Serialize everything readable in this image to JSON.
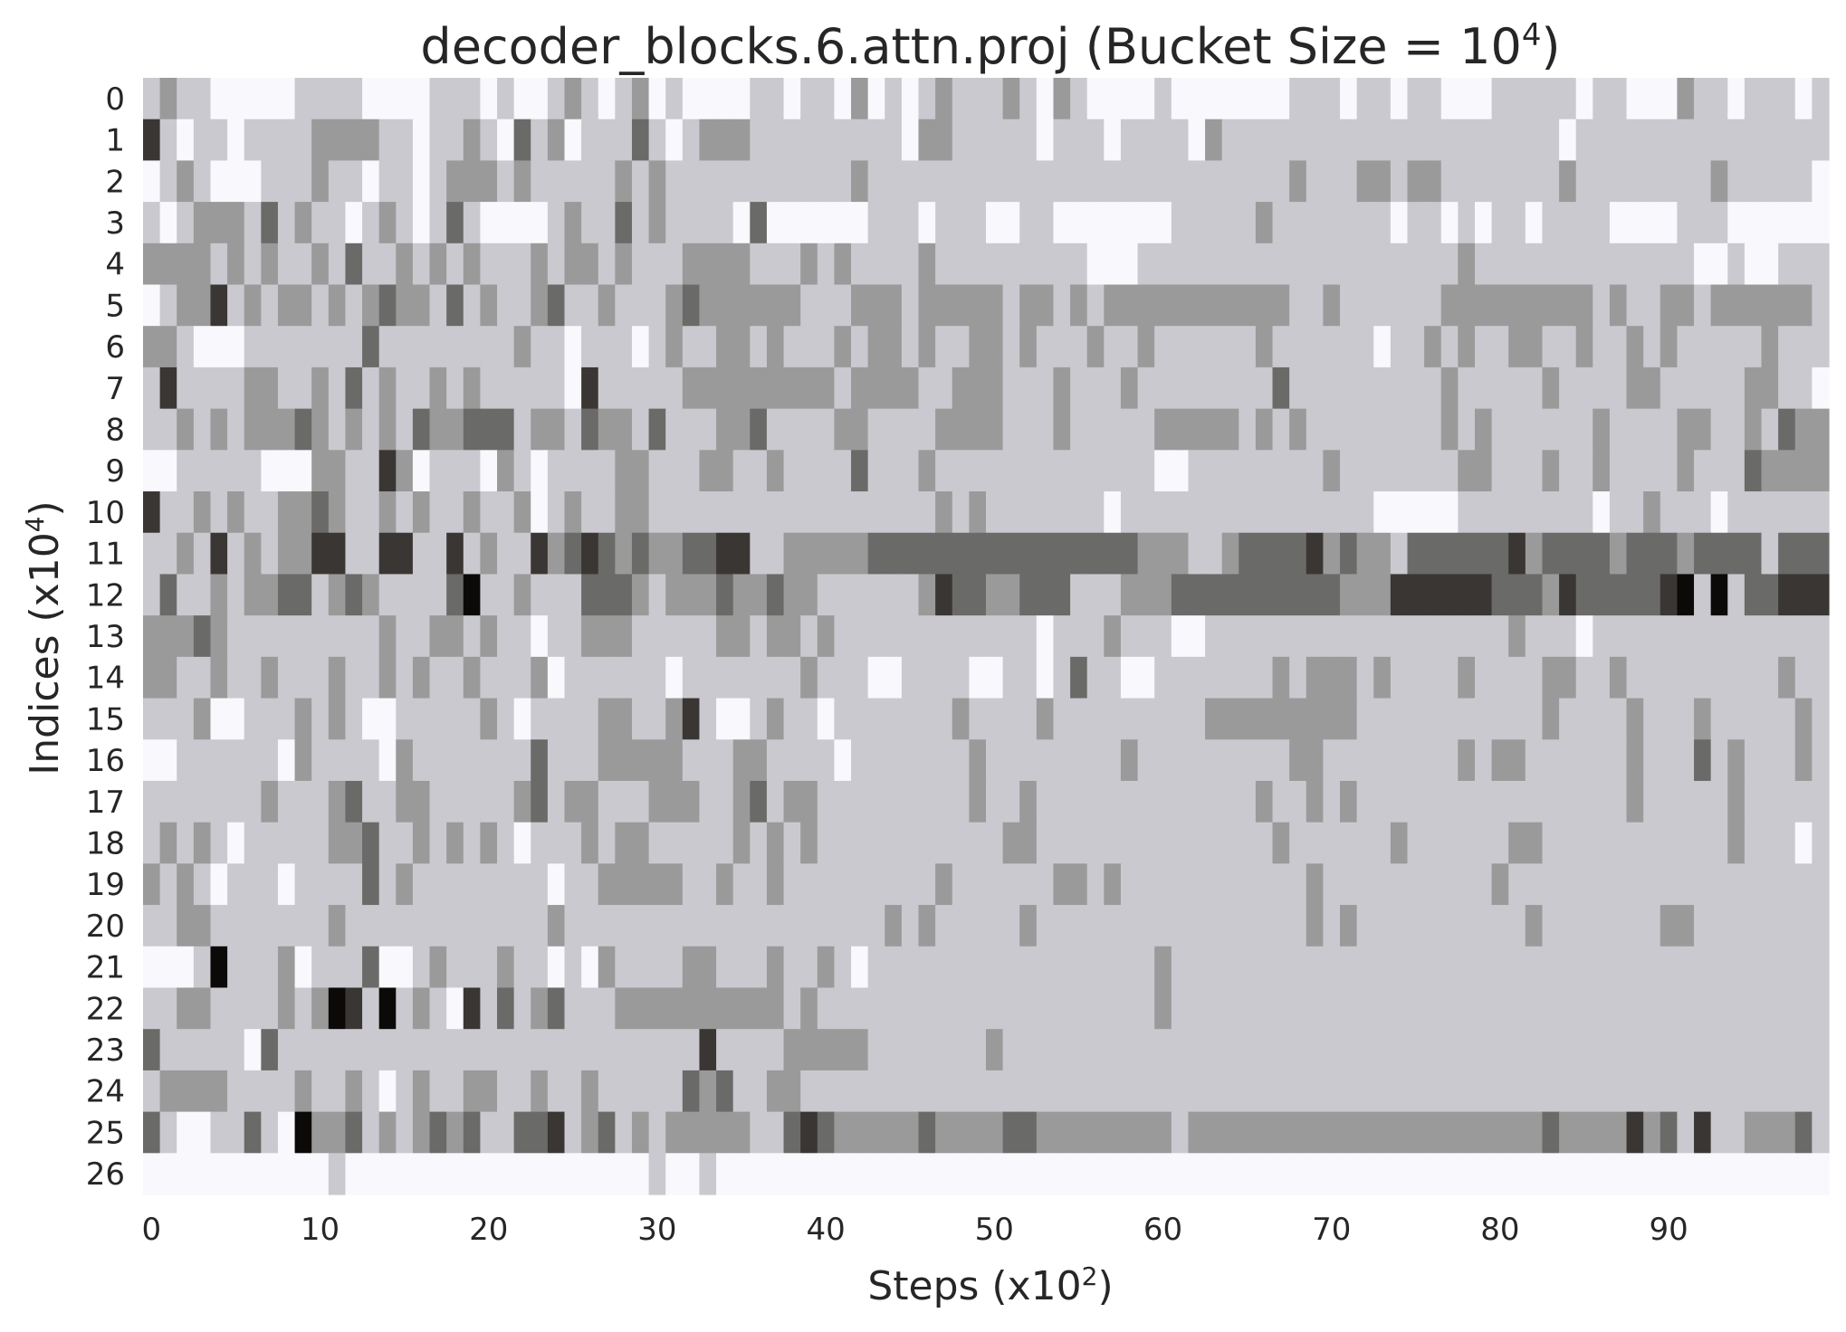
{
  "chart_data": {
    "type": "heatmap",
    "title": "decoder_blocks.6.attn.proj (Bucket Size = 10",
    "title_sup": "4",
    "title_suffix": ")",
    "xlabel": "Steps (x10",
    "xlabel_sup": "2",
    "xlabel_suffix": ")",
    "ylabel": "Indices (x10",
    "ylabel_sup": "4",
    "ylabel_suffix": ")",
    "x_ticks": [
      "0",
      "10",
      "20",
      "30",
      "40",
      "50",
      "60",
      "70",
      "80",
      "90"
    ],
    "y_ticks": [
      "0",
      "1",
      "2",
      "3",
      "4",
      "5",
      "6",
      "7",
      "8",
      "9",
      "10",
      "11",
      "12",
      "13",
      "14",
      "15",
      "16",
      "17",
      "18",
      "19",
      "20",
      "21",
      "22",
      "23",
      "24",
      "25",
      "26"
    ],
    "n_cols": 100,
    "n_rows": 27,
    "colormap": [
      "#f8f8fd",
      "#c9c9cf",
      "#9a9a9a",
      "#6a6a68",
      "#3a3634",
      "#0c0a08"
    ],
    "level_scale": "0 = lightest, 5 = darkest",
    "rows": [
      "1211000001111000011101001210120100001101102010121112102100001000000011101101100011111011000211011101",
      "4101101111222211011210312011131012221111111110221111101110111102111111111111111111110111111111111111",
      "0121000111211011012221211111212111111111112111111111111111111111111121112212211111112111111112111110",
      "1012221312110121013100001211312111103000000111011100110000000111112111111101101011011110000111000000",
      "2222121211213112121211121221211122221112121111211111111100011111111111111111112111111111111100100111",
      "0122412122121232213121123112111232222221112221222221221212222222222211211111122222222212112212222221",
      "2210001111111311111111211011101211221211121221211221211121121111112111111011212112211211212111112111",
      "1411112211213121121211111041111122222222212222112221112111211111111311111111121111121111221111122110",
      "1121212223212121322333122132213111223111122111122221112111112222212121111111121211111121111221121322",
      "0011111000221142011102101111221112211211113111211111111111110011111111211111112211121121111211132222",
      "4112121122321121211211201211221111111111111111121211111110111111111111111000001111111101121110111111",
      "1121412122441144114121142343232233441122222333333333333333322211233334232213333334233332333233331333",
      "1311212233123211113511211133321222322322111111243322333111222333333333322244444433324333334515133444",
      "2223211111111121122121101122211111221221211111111111101112111001111111111111111112111011111111111111",
      "2211211211121121211211120111111011111112111001111001101311001111111212221211112111122112111111111211",
      "1112001112121001111121011112211241001211011111112111121111111112222222221111111111121111211121111121",
      "0011111102111102111111131112222211122111101111111211111111211111111122111111112122111111211131211121",
      "1111111211123112211111231221112221123122111111111211211111111111112112121111111111111111211111211111",
      "1212101111122311212121011121221111121212111111111112211111111111111211111121111112211111111111211101",
      "2121011101111312111111110112222211211211111111121111112212111111111112111111111121111111111111111111",
      "1122111111121111111111112111111111111111111121211111211111111111111112121111111111211111112211111111",
      "0001511120111300121112110102111122111211210111111111111111112111111111111111111111111111111111111111",
      "1122111121254151210413123111222222222212111111111111111111112111111111111111111111111111111111111111",
      "3111110311111111111111111111111114111122222111111121111111111111111111111111111111111111111111111111",
      "1222211112112101211221121121111132311221111111111111111111111111111111111111111111111111111111111111",
      "3100113105223121232311334123121222221134322222322223322222222122222222222222222222232222423141122231",
      "0000000000010000000000000000001001000000000000000000000000000000000000000000000000000000000000000000"
    ]
  }
}
